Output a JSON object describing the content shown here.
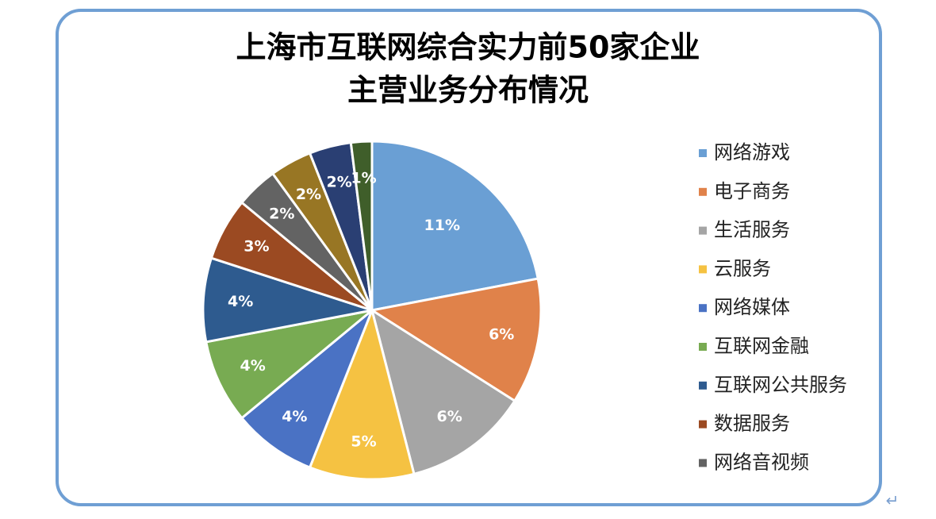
{
  "chart_data": {
    "type": "pie",
    "title": [
      "上海市互联网综合实力前50家企业",
      "主营业务分布情况"
    ],
    "categories": [
      "网络游戏",
      "电子商务",
      "生活服务",
      "云服务",
      "网络媒体",
      "互联网金融",
      "互联网公共服务",
      "数据服务",
      "网络音视频",
      null,
      null,
      null
    ],
    "values": [
      11,
      6,
      6,
      5,
      4,
      4,
      4,
      3,
      2,
      2,
      2,
      1
    ],
    "value_labels": [
      "11%",
      "6%",
      "6%",
      "5%",
      "4%",
      "4%",
      "4%",
      "3%",
      "2%",
      "2%",
      "2%",
      "1%"
    ],
    "colors": [
      "#6a9fd4",
      "#e0824a",
      "#a5a5a5",
      "#f5c242",
      "#4a72c4",
      "#78ab52",
      "#2e5b8f",
      "#9b4a22",
      "#636363",
      "#987624",
      "#2a3f73",
      "#3f5e2a"
    ],
    "legend": "right"
  },
  "paragraph_mark": "↵"
}
